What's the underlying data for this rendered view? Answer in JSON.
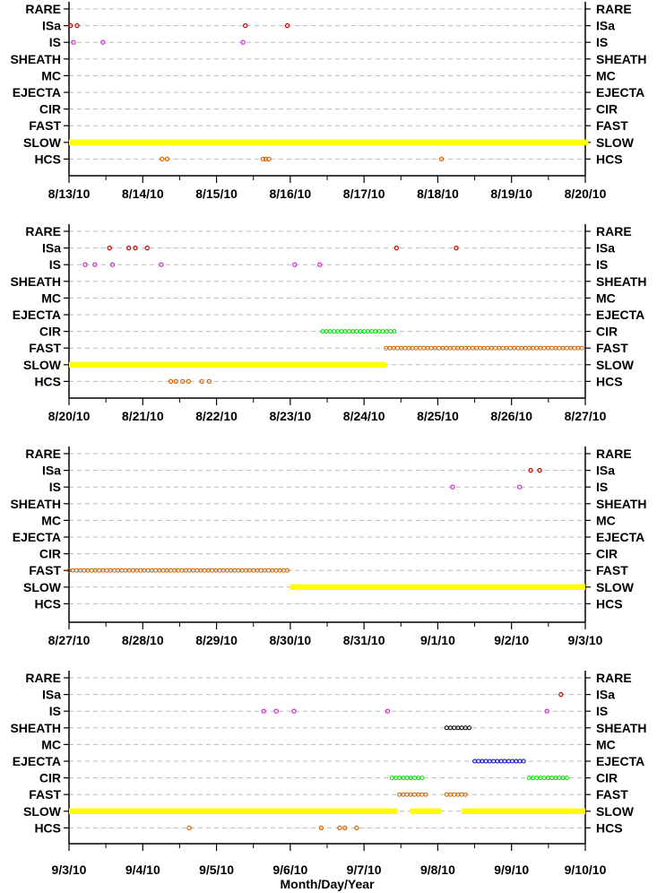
{
  "chart_data": {
    "type": "scatter",
    "categories": [
      "RARE",
      "ISa",
      "IS",
      "SHEATH",
      "MC",
      "EJECTA",
      "CIR",
      "FAST",
      "SLOW",
      "HCS"
    ],
    "xlabel": "Month/Day/Year",
    "colors": {
      "ISa": "#cc0000",
      "IS": "#cc33cc",
      "SHEATH": "#000000",
      "EJECTA": "#0000cc",
      "CIR": "#00dd00",
      "FAST": "#cc6600",
      "SLOW": "#ffff00",
      "HCS": "#dd6600",
      "grid": "#bbbbbb"
    },
    "panels": [
      {
        "start": 0,
        "tick_labels": [
          "8/13/10",
          "8/14/10",
          "8/15/10",
          "8/16/10",
          "8/17/10",
          "8/18/10",
          "8/19/10",
          "8/20/10"
        ],
        "points": {
          "ISa": [
            0.02,
            0.11,
            2.39,
            2.96
          ],
          "IS": [
            0.06,
            0.46,
            2.36
          ],
          "HCS": [
            1.26,
            1.33,
            2.63,
            2.67,
            2.71,
            5.05
          ]
        },
        "ranges": {
          "SLOW": [
            [
              0,
              7.04
            ]
          ]
        }
      },
      {
        "start": 7,
        "tick_labels": [
          "8/20/10",
          "8/21/10",
          "8/22/10",
          "8/23/10",
          "8/24/10",
          "8/25/10",
          "8/26/10",
          "8/27/10"
        ],
        "points": {
          "ISa": [
            0.55,
            0.81,
            0.9,
            1.06,
            4.44,
            5.25
          ],
          "IS": [
            0.22,
            0.35,
            0.59,
            1.25,
            3.06,
            3.4
          ],
          "HCS": [
            1.38,
            1.45,
            1.54,
            1.62,
            1.8,
            1.9
          ]
        },
        "ranges": {
          "CIR": [
            [
              3.44,
              4.44
            ]
          ],
          "FAST": [
            [
              4.3,
              7.0
            ]
          ],
          "SLOW": [
            [
              0,
              4.3
            ]
          ]
        }
      },
      {
        "start": 14,
        "tick_labels": [
          "8/27/10",
          "8/28/10",
          "8/29/10",
          "8/30/10",
          "8/31/10",
          "9/1/10",
          "9/2/10",
          "9/3/10"
        ],
        "points": {
          "ISa": [
            6.26,
            6.38
          ],
          "IS": [
            5.2,
            6.11
          ]
        },
        "ranges": {
          "FAST": [
            [
              0,
              3.0
            ]
          ],
          "SLOW": [
            [
              3.0,
              7.0
            ]
          ]
        }
      },
      {
        "start": 21,
        "tick_labels": [
          "9/3/10",
          "9/4/10",
          "9/5/10",
          "9/6/10",
          "9/7/10",
          "9/8/10",
          "9/9/10",
          "9/10/10"
        ],
        "points": {
          "ISa": [
            6.67
          ],
          "IS": [
            2.64,
            2.81,
            3.05,
            4.32,
            6.48
          ],
          "HCS": [
            1.63,
            3.42,
            3.67,
            3.74,
            3.9
          ]
        },
        "ranges": {
          "SHEATH": [
            [
              5.12,
              5.45
            ]
          ],
          "EJECTA": [
            [
              5.5,
              6.2
            ]
          ],
          "CIR": [
            [
              4.38,
              4.8
            ],
            [
              6.24,
              6.8
            ]
          ],
          "FAST": [
            [
              4.48,
              4.85
            ],
            [
              5.12,
              5.38
            ]
          ],
          "SLOW": [
            [
              0,
              4.45
            ],
            [
              4.62,
              5.05
            ],
            [
              5.32,
              7.0
            ]
          ]
        }
      }
    ]
  }
}
